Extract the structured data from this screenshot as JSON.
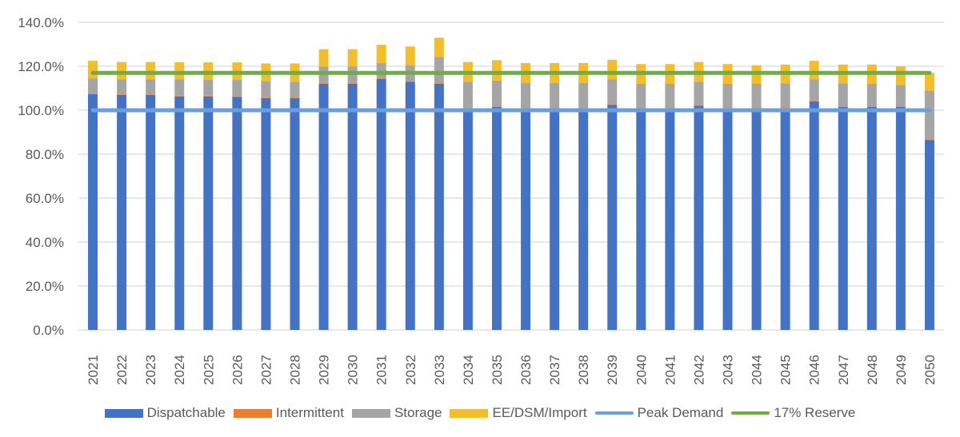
{
  "chart_data": {
    "type": "bar",
    "stacked": true,
    "title": "",
    "xlabel": "",
    "ylabel": "",
    "ylim": [
      0,
      140
    ],
    "y_tick_step": 20,
    "y_tick_format": "percent_1dp",
    "y_ticks": [
      "0.0%",
      "20.0%",
      "40.0%",
      "60.0%",
      "80.0%",
      "100.0%",
      "120.0%",
      "140.0%"
    ],
    "grid": true,
    "legend_position": "bottom",
    "categories": [
      "2021",
      "2022",
      "2023",
      "2024",
      "2025",
      "2026",
      "2027",
      "2028",
      "2029",
      "2030",
      "2031",
      "2032",
      "2033",
      "2034",
      "2035",
      "2036",
      "2037",
      "2038",
      "2039",
      "2040",
      "2041",
      "2042",
      "2043",
      "2044",
      "2045",
      "2046",
      "2047",
      "2048",
      "2049",
      "2050"
    ],
    "series": [
      {
        "name": "Dispatchable",
        "kind": "bar",
        "color": "#4472C4",
        "values": [
          107.3,
          107.0,
          107.0,
          106.3,
          106.3,
          106.0,
          105.5,
          105.5,
          112.0,
          112.0,
          114.2,
          113.0,
          112.0,
          100.0,
          101.5,
          100.5,
          100.5,
          100.5,
          102.5,
          100.5,
          100.5,
          102.0,
          100.5,
          100.5,
          101.0,
          104.0,
          101.5,
          101.5,
          101.5,
          86.5
        ]
      },
      {
        "name": "Intermittent",
        "kind": "bar",
        "color": "#ED7D31",
        "values": [
          0.3,
          0.3,
          0.3,
          0.3,
          0.3,
          0.3,
          0.3,
          0.3,
          0.3,
          0.3,
          0.3,
          0.3,
          0.3,
          0.3,
          0.3,
          0.3,
          0.3,
          0.3,
          0.3,
          0.3,
          0.3,
          0.3,
          0.3,
          0.3,
          0.3,
          0.3,
          0.3,
          0.3,
          0.3,
          0.3
        ]
      },
      {
        "name": "Storage",
        "kind": "bar",
        "color": "#A5A5A5",
        "values": [
          6.9,
          6.7,
          6.7,
          7.4,
          7.2,
          7.5,
          7.5,
          7.2,
          7.5,
          7.5,
          7.0,
          7.2,
          11.9,
          12.7,
          11.7,
          11.7,
          11.7,
          11.7,
          11.2,
          11.2,
          11.2,
          10.7,
          11.2,
          11.2,
          11.0,
          9.7,
          10.5,
          10.2,
          9.7,
          22.2
        ]
      },
      {
        "name": "EE/DSM/Import",
        "kind": "bar",
        "color": "#F2BE2C",
        "values": [
          8.0,
          8.0,
          8.0,
          7.8,
          8.0,
          8.0,
          8.0,
          8.3,
          8.0,
          8.0,
          8.3,
          8.5,
          8.8,
          9.0,
          9.3,
          9.0,
          9.0,
          9.0,
          9.0,
          9.0,
          9.0,
          9.0,
          9.0,
          8.5,
          8.5,
          8.5,
          8.5,
          8.8,
          8.5,
          8.0
        ]
      },
      {
        "name": "Peak Demand",
        "kind": "line",
        "color": "#6A9FDB",
        "values": [
          100,
          100,
          100,
          100,
          100,
          100,
          100,
          100,
          100,
          100,
          100,
          100,
          100,
          100,
          100,
          100,
          100,
          100,
          100,
          100,
          100,
          100,
          100,
          100,
          100,
          100,
          100,
          100,
          100,
          100
        ]
      },
      {
        "name": "17% Reserve",
        "kind": "line",
        "color": "#70AD47",
        "values": [
          117,
          117,
          117,
          117,
          117,
          117,
          117,
          117,
          117,
          117,
          117,
          117,
          117,
          117,
          117,
          117,
          117,
          117,
          117,
          117,
          117,
          117,
          117,
          117,
          117,
          117,
          117,
          117,
          117,
          117
        ]
      }
    ]
  },
  "legend": {
    "items": [
      {
        "label": "Dispatchable",
        "color": "#4472C4",
        "type": "box"
      },
      {
        "label": "Intermittent",
        "color": "#ED7D31",
        "type": "box"
      },
      {
        "label": "Storage",
        "color": "#A5A5A5",
        "type": "box"
      },
      {
        "label": "EE/DSM/Import",
        "color": "#F2BE2C",
        "type": "box"
      },
      {
        "label": "Peak Demand",
        "color": "#6A9FDB",
        "type": "line"
      },
      {
        "label": "17% Reserve",
        "color": "#70AD47",
        "type": "line"
      }
    ]
  },
  "colors": {
    "gridline": "#D9D9D9",
    "axis_text": "#595959",
    "background": "#FFFFFF"
  }
}
